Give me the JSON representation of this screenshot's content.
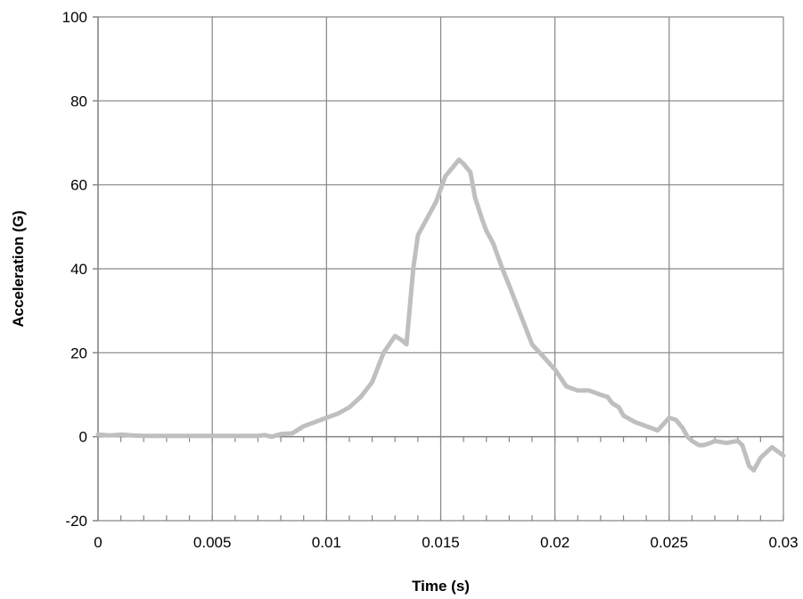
{
  "chart_data": {
    "type": "line",
    "title": "",
    "xlabel": "Time (s)",
    "ylabel": "Acceleration (G)",
    "xlim": [
      0,
      0.03
    ],
    "ylim": [
      -20,
      100
    ],
    "grid": true,
    "x_ticks": [
      0,
      0.005,
      0.01,
      0.015,
      0.02,
      0.025,
      0.03
    ],
    "x_tick_labels": [
      "0",
      "0.005",
      "0.01",
      "0.015",
      "0.02",
      "0.025",
      "0.03"
    ],
    "x_minor_tick_step": 0.001,
    "y_ticks": [
      -20,
      0,
      20,
      40,
      60,
      80,
      100
    ],
    "y_tick_labels": [
      "-20",
      "0",
      "20",
      "40",
      "60",
      "80",
      "100"
    ],
    "line_color": "#bfbfbf",
    "series": [
      {
        "x": [
          0,
          0.0005,
          0.001,
          0.0015,
          0.002,
          0.003,
          0.004,
          0.005,
          0.006,
          0.007,
          0.0073,
          0.0076,
          0.008,
          0.0085,
          0.009,
          0.0095,
          0.01,
          0.0105,
          0.011,
          0.0115,
          0.012,
          0.0125,
          0.013,
          0.0133,
          0.0135,
          0.0138,
          0.014,
          0.0143,
          0.0145,
          0.0148,
          0.0152,
          0.0155,
          0.0158,
          0.016,
          0.0163,
          0.0165,
          0.0168,
          0.017,
          0.0173,
          0.0177,
          0.018,
          0.0185,
          0.019,
          0.0195,
          0.02,
          0.0205,
          0.021,
          0.0215,
          0.022,
          0.0223,
          0.0225,
          0.0228,
          0.023,
          0.0235,
          0.024,
          0.0245,
          0.025,
          0.0253,
          0.0256,
          0.0258,
          0.026,
          0.0263,
          0.0265,
          0.0268,
          0.027,
          0.0275,
          0.028,
          0.0282,
          0.0285,
          0.0287,
          0.029,
          0.0295,
          0.03
        ],
        "y": [
          0.5,
          0.3,
          0.5,
          0.3,
          0.2,
          0.2,
          0.2,
          0.2,
          0.2,
          0.2,
          0.4,
          0,
          0.6,
          0.8,
          2.5,
          3.5,
          4.5,
          5.5,
          7,
          9.5,
          13,
          20,
          24,
          23,
          22,
          40,
          48,
          51,
          53,
          56,
          62,
          64,
          66,
          65,
          63,
          57,
          52,
          49,
          46,
          40,
          36,
          29,
          22,
          19,
          16,
          12,
          11,
          11,
          10,
          9.5,
          8,
          7,
          5,
          3.5,
          2.5,
          1.5,
          4.5,
          4,
          2,
          0,
          -1,
          -2,
          -2,
          -1.5,
          -1,
          -1.5,
          -1,
          -2,
          -7,
          -8,
          -5,
          -2.5,
          -4.5
        ]
      }
    ]
  }
}
